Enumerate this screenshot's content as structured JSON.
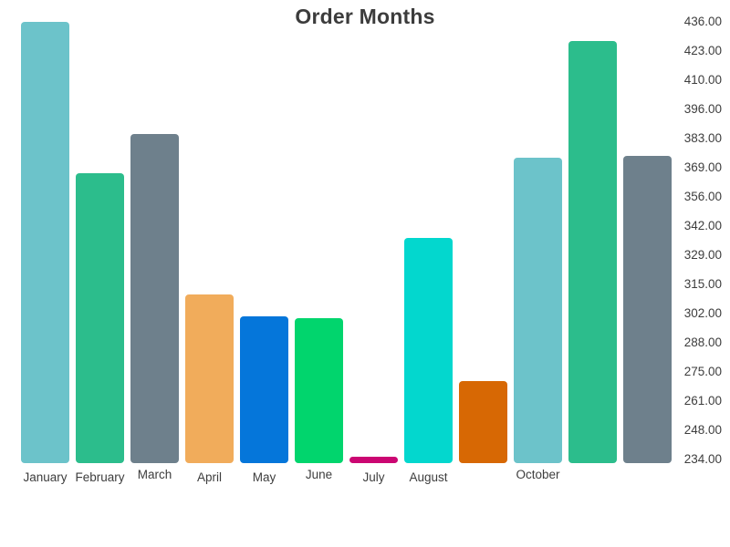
{
  "chart_data": {
    "type": "bar",
    "title": "Order Months",
    "categories": [
      "January",
      "February",
      "March",
      "April",
      "May",
      "June",
      "July",
      "August",
      "",
      "October",
      "",
      ""
    ],
    "values": [
      436,
      366,
      384,
      310,
      300,
      299,
      235,
      336,
      270,
      373,
      427,
      374
    ],
    "bar_colors": [
      "#6cc3ca",
      "#2cbd8c",
      "#6e808c",
      "#f1ac5b",
      "#0576da",
      "#01d56d",
      "#cb0672",
      "#03d7ce",
      "#d76804",
      "#6cc3ca",
      "#2cbd8c",
      "#6e808c"
    ],
    "xlabel": "",
    "ylabel": "",
    "grid": false,
    "legend": false,
    "y_axis": {
      "side": "right",
      "min": 232,
      "max": 437,
      "tick_labels_top_to_bottom": [
        "436.00",
        "423.00",
        "410.00",
        "396.00",
        "383.00",
        "369.00",
        "356.00",
        "342.00",
        "329.00",
        "315.00",
        "302.00",
        "288.00",
        "275.00",
        "261.00",
        "248.00",
        "234.00"
      ]
    },
    "text_color": "#3d3d3d",
    "background_color": "#ffffff"
  }
}
